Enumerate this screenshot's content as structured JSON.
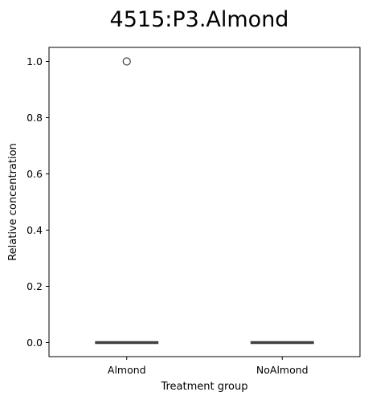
{
  "chart_data": {
    "type": "box",
    "title": "4515:P3.Almond",
    "xlabel": "Treatment group",
    "ylabel": "Relative concentration",
    "categories": [
      "Almond",
      "NoAlmond"
    ],
    "ylim": [
      -0.05,
      1.05
    ],
    "yticks": [
      0.0,
      0.2,
      0.4,
      0.6,
      0.8,
      1.0
    ],
    "ytick_labels": [
      "0.0",
      "0.2",
      "0.4",
      "0.6",
      "0.8",
      "1.0"
    ],
    "grid": false,
    "legend": "none",
    "boxes": [
      {
        "category": "Almond",
        "min": 0.0,
        "q1": 0.0,
        "median": 0.0,
        "q3": 0.0,
        "max": 0.0,
        "outliers": [
          1.0
        ]
      },
      {
        "category": "NoAlmond",
        "min": 0.0,
        "q1": 0.0,
        "median": 0.0,
        "q3": 0.0,
        "max": 0.0,
        "outliers": []
      }
    ],
    "colors": {
      "box_line": "#3f3f3f",
      "axis": "#000000"
    }
  }
}
